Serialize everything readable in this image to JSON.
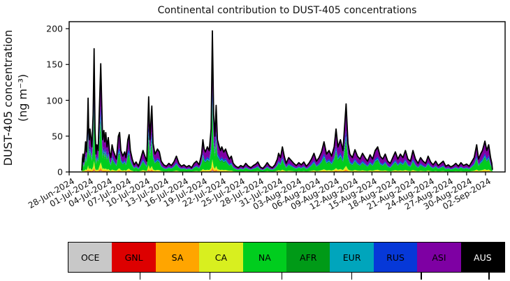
{
  "title": "Continental contribution to DUST-405 concentrations",
  "y_axis": {
    "label_line1": "DUST-405 concentration",
    "label_line2": "(ng m⁻³)",
    "ticks": [
      0,
      50,
      100,
      150,
      200
    ]
  },
  "x_axis": {
    "tick_labels": [
      "28-Jun-2024",
      "01-Jul-2024",
      "04-Jul-2024",
      "07-Jul-2024",
      "10-Jul-2024",
      "13-Jul-2024",
      "16-Jul-2024",
      "19-Jul-2024",
      "22-Jul-2024",
      "25-Jul-2024",
      "28-Jul-2024",
      "31-Jul-2024",
      "03-Aug-2024",
      "06-Aug-2024",
      "09-Aug-2024",
      "12-Aug-2024",
      "15-Aug-2024",
      "18-Aug-2024",
      "21-Aug-2024",
      "24-Aug-2024",
      "27-Aug-2024",
      "30-Aug-2024",
      "02-Sep-2024"
    ],
    "tick_interval_days": 3
  },
  "legend": {
    "regions": [
      {
        "label": "OCE",
        "color": "#c8c8c8",
        "text_color": "#000000"
      },
      {
        "label": "GNL",
        "color": "#dd0000",
        "text_color": "#000000"
      },
      {
        "label": "SA",
        "color": "#ffa500",
        "text_color": "#000000"
      },
      {
        "label": "CA",
        "color": "#d8ef1f",
        "text_color": "#000000"
      },
      {
        "label": "NA",
        "color": "#00cd1e",
        "text_color": "#000000"
      },
      {
        "label": "AFR",
        "color": "#009a17",
        "text_color": "#000000"
      },
      {
        "label": "EUR",
        "color": "#00a5bc",
        "text_color": "#000000"
      },
      {
        "label": "RUS",
        "color": "#0638d8",
        "text_color": "#000000"
      },
      {
        "label": "ASI",
        "color": "#7e00a3",
        "text_color": "#000000"
      },
      {
        "label": "AUS",
        "color": "#000000",
        "text_color": "#ffffff"
      }
    ]
  },
  "chart_data": {
    "type": "area",
    "stacked": true,
    "title": "Continental contribution to DUST-405 concentrations",
    "ylabel": "DUST-405 concentration (ng m⁻³)",
    "ylim": [
      0,
      210
    ],
    "x_unit": "days since 28-Jun-2024",
    "x_range_days": [
      0,
      69.1
    ],
    "grid": false,
    "legend_position": "bottom strip",
    "series_order_bottom_to_top": [
      "OCE",
      "GNL",
      "SA",
      "CA",
      "NA",
      "AFR",
      "EUR",
      "RUS",
      "ASI",
      "AUS"
    ],
    "composition_fraction": {
      "OCE": 0.012,
      "GNL": 0.006,
      "SA": 0.022,
      "CA": 0.05,
      "NA": 0.34,
      "AFR": 0.055,
      "EUR": 0.05,
      "RUS": 0.075,
      "ASI": 0.32,
      "AUS": 0.07
    },
    "total_line": {
      "color": "#000000",
      "points": [
        [
          2.0,
          2
        ],
        [
          2.1,
          18
        ],
        [
          2.2,
          25
        ],
        [
          2.3,
          14
        ],
        [
          2.5,
          30
        ],
        [
          2.6,
          42
        ],
        [
          2.75,
          28
        ],
        [
          2.9,
          60
        ],
        [
          3.0,
          103
        ],
        [
          3.1,
          55
        ],
        [
          3.2,
          45
        ],
        [
          3.3,
          60
        ],
        [
          3.45,
          48
        ],
        [
          3.6,
          35
        ],
        [
          3.8,
          80
        ],
        [
          3.95,
          172
        ],
        [
          4.1,
          60
        ],
        [
          4.25,
          25
        ],
        [
          4.4,
          38
        ],
        [
          4.6,
          30
        ],
        [
          4.8,
          90
        ],
        [
          5.0,
          151
        ],
        [
          5.15,
          100
        ],
        [
          5.3,
          45
        ],
        [
          5.5,
          58
        ],
        [
          5.65,
          42
        ],
        [
          5.8,
          55
        ],
        [
          6.0,
          35
        ],
        [
          6.2,
          48
        ],
        [
          6.4,
          28
        ],
        [
          6.6,
          20
        ],
        [
          6.8,
          38
        ],
        [
          7.0,
          30
        ],
        [
          7.2,
          25
        ],
        [
          7.5,
          18
        ],
        [
          7.8,
          50
        ],
        [
          8.0,
          55
        ],
        [
          8.2,
          30
        ],
        [
          8.5,
          22
        ],
        [
          8.8,
          28
        ],
        [
          9.0,
          20
        ],
        [
          9.3,
          45
        ],
        [
          9.5,
          52
        ],
        [
          9.7,
          30
        ],
        [
          10.0,
          18
        ],
        [
          10.3,
          10
        ],
        [
          10.6,
          14
        ],
        [
          11.0,
          8
        ],
        [
          11.4,
          20
        ],
        [
          11.7,
          30
        ],
        [
          12.0,
          22
        ],
        [
          12.3,
          15
        ],
        [
          12.6,
          105
        ],
        [
          12.8,
          45
        ],
        [
          13.1,
          92
        ],
        [
          13.3,
          40
        ],
        [
          13.6,
          25
        ],
        [
          14.0,
          32
        ],
        [
          14.3,
          28
        ],
        [
          14.6,
          15
        ],
        [
          15.0,
          10
        ],
        [
          15.4,
          8
        ],
        [
          15.8,
          12
        ],
        [
          16.2,
          9
        ],
        [
          16.6,
          14
        ],
        [
          17.0,
          22
        ],
        [
          17.4,
          12
        ],
        [
          17.8,
          8
        ],
        [
          18.2,
          10
        ],
        [
          18.6,
          7
        ],
        [
          19.0,
          9
        ],
        [
          19.4,
          6
        ],
        [
          19.8,
          12
        ],
        [
          20.2,
          15
        ],
        [
          20.6,
          10
        ],
        [
          21.0,
          25
        ],
        [
          21.2,
          45
        ],
        [
          21.4,
          32
        ],
        [
          21.6,
          28
        ],
        [
          21.9,
          35
        ],
        [
          22.2,
          30
        ],
        [
          22.5,
          60
        ],
        [
          22.7,
          197
        ],
        [
          22.9,
          80
        ],
        [
          23.1,
          50
        ],
        [
          23.3,
          93
        ],
        [
          23.5,
          45
        ],
        [
          23.8,
          35
        ],
        [
          24.0,
          30
        ],
        [
          24.2,
          35
        ],
        [
          24.5,
          28
        ],
        [
          24.8,
          32
        ],
        [
          25.1,
          24
        ],
        [
          25.4,
          18
        ],
        [
          25.7,
          22
        ],
        [
          26.0,
          12
        ],
        [
          26.4,
          8
        ],
        [
          26.8,
          6
        ],
        [
          27.2,
          9
        ],
        [
          27.6,
          7
        ],
        [
          28.0,
          12
        ],
        [
          28.4,
          8
        ],
        [
          28.8,
          6
        ],
        [
          29.2,
          9
        ],
        [
          29.6,
          11
        ],
        [
          29.9,
          14
        ],
        [
          30.3,
          7
        ],
        [
          30.7,
          5
        ],
        [
          31.1,
          9
        ],
        [
          31.4,
          13
        ],
        [
          31.8,
          8
        ],
        [
          32.2,
          6
        ],
        [
          32.6,
          10
        ],
        [
          33.0,
          18
        ],
        [
          33.2,
          26
        ],
        [
          33.5,
          20
        ],
        [
          33.8,
          35
        ],
        [
          34.1,
          22
        ],
        [
          34.4,
          12
        ],
        [
          34.8,
          20
        ],
        [
          35.2,
          16
        ],
        [
          35.6,
          12
        ],
        [
          36.0,
          9
        ],
        [
          36.4,
          13
        ],
        [
          36.8,
          10
        ],
        [
          37.2,
          14
        ],
        [
          37.6,
          8
        ],
        [
          38.0,
          12
        ],
        [
          38.4,
          18
        ],
        [
          38.8,
          26
        ],
        [
          39.2,
          15
        ],
        [
          39.6,
          20
        ],
        [
          40.0,
          28
        ],
        [
          40.4,
          42
        ],
        [
          40.8,
          25
        ],
        [
          41.2,
          30
        ],
        [
          41.6,
          22
        ],
        [
          42.0,
          35
        ],
        [
          42.3,
          60
        ],
        [
          42.6,
          35
        ],
        [
          43.0,
          45
        ],
        [
          43.4,
          30
        ],
        [
          43.9,
          95
        ],
        [
          44.2,
          40
        ],
        [
          44.5,
          25
        ],
        [
          44.9,
          20
        ],
        [
          45.3,
          31
        ],
        [
          45.7,
          22
        ],
        [
          46.1,
          18
        ],
        [
          46.5,
          26
        ],
        [
          46.9,
          20
        ],
        [
          47.3,
          15
        ],
        [
          47.7,
          24
        ],
        [
          48.1,
          18
        ],
        [
          48.5,
          30
        ],
        [
          48.9,
          35
        ],
        [
          49.3,
          22
        ],
        [
          49.7,
          18
        ],
        [
          50.1,
          25
        ],
        [
          50.5,
          15
        ],
        [
          50.9,
          12
        ],
        [
          51.3,
          20
        ],
        [
          51.7,
          28
        ],
        [
          52.1,
          18
        ],
        [
          52.5,
          25
        ],
        [
          52.9,
          20
        ],
        [
          53.3,
          30
        ],
        [
          53.7,
          18
        ],
        [
          54.1,
          15
        ],
        [
          54.5,
          30
        ],
        [
          54.9,
          18
        ],
        [
          55.3,
          12
        ],
        [
          55.7,
          20
        ],
        [
          56.1,
          15
        ],
        [
          56.5,
          12
        ],
        [
          56.9,
          22
        ],
        [
          57.3,
          14
        ],
        [
          57.7,
          10
        ],
        [
          58.1,
          15
        ],
        [
          58.5,
          9
        ],
        [
          58.9,
          12
        ],
        [
          59.3,
          15
        ],
        [
          59.7,
          8
        ],
        [
          60.1,
          10
        ],
        [
          60.5,
          7
        ],
        [
          60.9,
          9
        ],
        [
          61.3,
          12
        ],
        [
          61.7,
          8
        ],
        [
          62.1,
          13
        ],
        [
          62.5,
          9
        ],
        [
          63.0,
          11
        ],
        [
          63.4,
          8
        ],
        [
          63.8,
          14
        ],
        [
          64.2,
          20
        ],
        [
          64.6,
          38
        ],
        [
          64.9,
          18
        ],
        [
          65.2,
          25
        ],
        [
          65.5,
          30
        ],
        [
          65.9,
          43
        ],
        [
          66.2,
          30
        ],
        [
          66.5,
          38
        ],
        [
          66.8,
          20
        ],
        [
          67.0,
          12
        ],
        [
          67.1,
          3
        ]
      ]
    }
  }
}
